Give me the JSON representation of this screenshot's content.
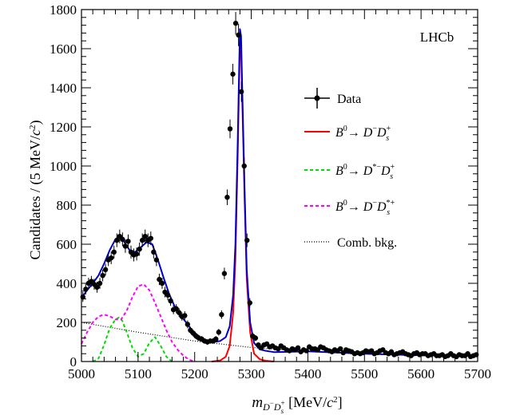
{
  "chart_data": {
    "type": "line",
    "experiment_label": "LHCb",
    "xlabel": {
      "var": "m",
      "sub_main": "D",
      "sub_sup1": "−",
      "sub_main2": "D",
      "sub_sub2": "s",
      "sub_sup2": "+",
      "unit": "[MeV/",
      "unit_c": "c",
      "unit_exp": "2",
      "unit_close": "]"
    },
    "ylabel": {
      "text": "Candidates / (5 MeV/",
      "c": "c",
      "exp": "2",
      "close": ")"
    },
    "xlim": [
      5000,
      5700
    ],
    "ylim": [
      0,
      1800
    ],
    "x_ticks": [
      5000,
      5100,
      5200,
      5300,
      5400,
      5500,
      5600,
      5700
    ],
    "y_ticks": [
      0,
      200,
      400,
      600,
      800,
      1000,
      1200,
      1400,
      1600,
      1800
    ],
    "legend_position": "right",
    "legend": [
      {
        "key": "data",
        "style": "points",
        "color": "#000000",
        "label": {
          "plain": "Data"
        }
      },
      {
        "key": "signal",
        "style": "solid",
        "color": "#ff0000",
        "label": {
          "b": "B",
          "b_sup": "0",
          "arrow": "→ ",
          "d1": "D",
          "d1_sup": "−",
          "d2": "D",
          "d2_sub": "s",
          "d2_sup": "+"
        }
      },
      {
        "key": "dstar_ds",
        "style": "dashed",
        "color": "#00dd00",
        "label": {
          "b": "B",
          "b_sup": "0",
          "arrow": "→ ",
          "d1": "D",
          "d1_sup": "*−",
          "d2": "D",
          "d2_sub": "s",
          "d2_sup": "+"
        }
      },
      {
        "key": "d_dsstar",
        "style": "dashed",
        "color": "#ff00ff",
        "label": {
          "b": "B",
          "b_sup": "0",
          "arrow": "→ ",
          "d1": "D",
          "d1_sup": "−",
          "d2": "D",
          "d2_sub": "s",
          "d2_sup": "*+"
        }
      },
      {
        "key": "comb",
        "style": "dotted",
        "color": "#000000",
        "label": {
          "plain": "Comb. bkg."
        }
      }
    ],
    "total_fit_color": "#0000cc",
    "series": [
      {
        "key": "signal",
        "x": [
          5230,
          5245,
          5255,
          5262,
          5268,
          5272,
          5276,
          5278,
          5280,
          5282,
          5284,
          5288,
          5292,
          5298,
          5305,
          5315,
          5325,
          5340
        ],
        "y": [
          0,
          5,
          25,
          80,
          250,
          520,
          1050,
          1350,
          1640,
          1600,
          1350,
          850,
          420,
          150,
          40,
          12,
          4,
          0
        ]
      },
      {
        "key": "dstar_ds",
        "x": [
          5020,
          5030,
          5040,
          5050,
          5060,
          5066,
          5072,
          5080,
          5090,
          5100,
          5110,
          5120,
          5130,
          5140,
          5150,
          5160
        ],
        "y": [
          0,
          15,
          85,
          170,
          215,
          225,
          210,
          150,
          70,
          25,
          40,
          95,
          125,
          80,
          25,
          0
        ]
      },
      {
        "key": "d_dsstar",
        "x": [
          5000,
          5010,
          5020,
          5030,
          5040,
          5050,
          5060,
          5070,
          5080,
          5090,
          5100,
          5110,
          5120,
          5130,
          5140,
          5150,
          5160,
          5170,
          5180,
          5190,
          5200
        ],
        "y": [
          90,
          150,
          200,
          230,
          240,
          232,
          215,
          215,
          260,
          330,
          385,
          395,
          365,
          300,
          230,
          160,
          100,
          60,
          30,
          10,
          0
        ]
      },
      {
        "key": "comb",
        "x": [
          5000,
          5100,
          5200,
          5300,
          5400,
          5500,
          5600,
          5700
        ],
        "y": [
          200,
          150,
          105,
          72,
          52,
          40,
          32,
          28
        ]
      },
      {
        "key": "total",
        "x": [
          5000,
          5010,
          5020,
          5030,
          5040,
          5050,
          5060,
          5066,
          5075,
          5085,
          5095,
          5105,
          5115,
          5125,
          5135,
          5145,
          5155,
          5165,
          5175,
          5185,
          5195,
          5205,
          5215,
          5225,
          5235,
          5245,
          5255,
          5262,
          5268,
          5272,
          5276,
          5278,
          5280,
          5282,
          5284,
          5288,
          5292,
          5298,
          5305,
          5315,
          5325,
          5340,
          5400,
          5500,
          5600,
          5700
        ],
        "y": [
          325,
          365,
          400,
          440,
          500,
          570,
          625,
          640,
          615,
          570,
          560,
          585,
          610,
          600,
          520,
          430,
          345,
          280,
          235,
          200,
          160,
          135,
          115,
          105,
          100,
          105,
          125,
          180,
          340,
          600,
          1120,
          1415,
          1700,
          1665,
          1405,
          900,
          470,
          200,
          95,
          62,
          55,
          48,
          52,
          40,
          32,
          28
        ]
      },
      {
        "key": "data",
        "type": "scatter",
        "x": [
          5002.5,
          5007.5,
          5012.5,
          5017.5,
          5022.5,
          5027.5,
          5032.5,
          5037.5,
          5042.5,
          5047.5,
          5052.5,
          5057.5,
          5062.5,
          5067.5,
          5072.5,
          5077.5,
          5082.5,
          5087.5,
          5092.5,
          5097.5,
          5102.5,
          5107.5,
          5112.5,
          5117.5,
          5122.5,
          5127.5,
          5132.5,
          5137.5,
          5142.5,
          5147.5,
          5152.5,
          5157.5,
          5162.5,
          5167.5,
          5172.5,
          5177.5,
          5182.5,
          5187.5,
          5192.5,
          5197.5,
          5202.5,
          5207.5,
          5212.5,
          5217.5,
          5222.5,
          5227.5,
          5232.5,
          5237.5,
          5242.5,
          5247.5,
          5252.5,
          5257.5,
          5262.5,
          5267.5,
          5272.5,
          5277.5,
          5282.5,
          5287.5,
          5292.5,
          5297.5,
          5302.5,
          5307.5,
          5312.5,
          5317.5,
          5322.5,
          5327.5,
          5332.5,
          5337.5,
          5342.5,
          5347.5,
          5352.5,
          5357.5,
          5362.5,
          5367.5,
          5372.5,
          5377.5,
          5382.5,
          5387.5,
          5392.5,
          5397.5,
          5402.5,
          5407.5,
          5412.5,
          5417.5,
          5422.5,
          5427.5,
          5432.5,
          5437.5,
          5442.5,
          5447.5,
          5452.5,
          5457.5,
          5462.5,
          5467.5,
          5472.5,
          5477.5,
          5482.5,
          5487.5,
          5492.5,
          5497.5,
          5502.5,
          5507.5,
          5512.5,
          5517.5,
          5522.5,
          5527.5,
          5532.5,
          5537.5,
          5542.5,
          5547.5,
          5552.5,
          5557.5,
          5562.5,
          5567.5,
          5572.5,
          5577.5,
          5582.5,
          5587.5,
          5592.5,
          5597.5,
          5602.5,
          5607.5,
          5612.5,
          5617.5,
          5622.5,
          5627.5,
          5632.5,
          5637.5,
          5642.5,
          5647.5,
          5652.5,
          5657.5,
          5662.5,
          5667.5,
          5672.5,
          5677.5,
          5682.5,
          5687.5,
          5692.5,
          5697.5
        ],
        "y": [
          330,
          370,
          400,
          410,
          395,
          380,
          400,
          440,
          470,
          520,
          530,
          560,
          620,
          640,
          625,
          590,
          615,
          560,
          545,
          550,
          575,
          620,
          640,
          620,
          630,
          560,
          520,
          420,
          400,
          355,
          340,
          310,
          265,
          270,
          250,
          230,
          235,
          190,
          160,
          145,
          130,
          120,
          115,
          105,
          100,
          105,
          105,
          115,
          150,
          240,
          450,
          840,
          1190,
          1470,
          1730,
          1670,
          1380,
          1000,
          620,
          300,
          130,
          120,
          85,
          70,
          85,
          90,
          75,
          80,
          70,
          65,
          80,
          70,
          60,
          55,
          65,
          60,
          70,
          50,
          60,
          55,
          75,
          65,
          65,
          60,
          75,
          70,
          60,
          55,
          50,
          60,
          55,
          65,
          45,
          60,
          55,
          50,
          40,
          45,
          40,
          45,
          55,
          50,
          55,
          40,
          45,
          55,
          60,
          45,
          40,
          50,
          35,
          40,
          45,
          50,
          40,
          35,
          30,
          40,
          45,
          35,
          40,
          40,
          30,
          35,
          40,
          30,
          30,
          35,
          25,
          30,
          40,
          30,
          25,
          35,
          30,
          30,
          40,
          25,
          30,
          35
        ],
        "err": [
          25,
          27,
          28,
          28,
          28,
          28,
          28,
          30,
          30,
          32,
          32,
          33,
          35,
          35,
          35,
          34,
          35,
          33,
          33,
          33,
          34,
          35,
          35,
          35,
          35,
          33,
          32,
          29,
          28,
          27,
          26,
          25,
          23,
          23,
          22,
          21,
          22,
          20,
          18,
          17,
          16,
          15,
          15,
          14,
          14,
          14,
          14,
          15,
          17,
          22,
          30,
          40,
          48,
          53,
          58,
          57,
          52,
          44,
          35,
          24,
          16,
          15,
          13,
          12,
          13,
          13,
          12,
          12,
          12,
          11,
          12,
          12,
          11,
          10,
          11,
          11,
          12,
          10,
          11,
          10,
          12,
          11,
          11,
          11,
          12,
          12,
          11,
          10,
          10,
          11,
          10,
          11,
          9,
          11,
          10,
          10,
          9,
          9,
          9,
          9,
          10,
          10,
          10,
          9,
          9,
          10,
          11,
          9,
          9,
          10,
          8,
          9,
          9,
          10,
          9,
          8,
          8,
          9,
          9,
          8,
          9,
          9,
          8,
          8,
          9,
          8,
          8,
          8,
          7,
          8,
          9,
          8,
          7,
          8,
          8,
          8,
          9,
          7,
          8,
          8
        ]
      }
    ]
  }
}
